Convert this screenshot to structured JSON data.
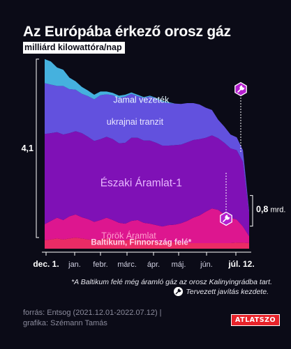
{
  "title": "Az Európába érkező orosz gáz",
  "subtitle": "milliárd kilowattóra/nap",
  "chart_data": {
    "type": "area",
    "stacked": true,
    "x_ticks": [
      "dec. 1.",
      "jan.",
      "febr.",
      "márc.",
      "ápr.",
      "máj.",
      "jún.",
      "júl. 12."
    ],
    "start_value_label": "4,1",
    "end_value_label": "0,8",
    "end_value_unit": "mrd.",
    "ylim": [
      0,
      4.4
    ],
    "series": [
      {
        "name": "Baltikum, Finnország felé*",
        "color": "#ff2f6d",
        "values": [
          0.18,
          0.2,
          0.22,
          0.2,
          0.22,
          0.24,
          0.22,
          0.2,
          0.18,
          0.2,
          0.22,
          0.2,
          0.18,
          0.18,
          0.2,
          0.2,
          0.18,
          0.18,
          0.16,
          0.14,
          0.15,
          0.14,
          0.13,
          0.12,
          0.12,
          0.12,
          0.12,
          0.12,
          0.12,
          0.12,
          0.12,
          0.13,
          0.13,
          0.12
        ]
      },
      {
        "name": "Török Áramlat",
        "color": "#f0189a",
        "values": [
          0.35,
          0.4,
          0.45,
          0.42,
          0.48,
          0.5,
          0.46,
          0.44,
          0.4,
          0.42,
          0.45,
          0.42,
          0.38,
          0.36,
          0.4,
          0.42,
          0.38,
          0.36,
          0.35,
          0.34,
          0.36,
          0.38,
          0.42,
          0.48,
          0.55,
          0.6,
          0.68,
          0.75,
          0.72,
          0.62,
          0.55,
          0.5,
          0.35,
          0.15
        ]
      },
      {
        "name": "Északi Áramlat-1",
        "color": "#8a12c4",
        "values": [
          1.95,
          1.9,
          1.85,
          1.85,
          1.8,
          1.8,
          1.82,
          1.78,
          1.75,
          1.75,
          1.75,
          1.75,
          1.72,
          1.75,
          1.8,
          1.78,
          1.78,
          1.8,
          1.78,
          1.75,
          1.72,
          1.72,
          1.7,
          1.7,
          1.68,
          1.65,
          1.6,
          1.58,
          1.55,
          1.55,
          1.5,
          1.5,
          1.4,
          0.5
        ]
      },
      {
        "name": "ukrajnai tranzit",
        "color": "#6a58f0",
        "values": [
          1.1,
          1.05,
          1.0,
          1.05,
          0.95,
          0.9,
          0.85,
          0.88,
          0.9,
          0.95,
          0.92,
          0.95,
          0.98,
          1.0,
          0.95,
          0.9,
          0.92,
          0.95,
          0.95,
          0.95,
          0.92,
          0.9,
          0.88,
          0.85,
          0.8,
          0.75,
          0.65,
          0.55,
          0.4,
          0.35,
          0.3,
          0.28,
          0.25,
          0.05
        ]
      },
      {
        "name": "Jamal vezeték",
        "color": "#4bc0f0",
        "values": [
          0.52,
          0.5,
          0.4,
          0.35,
          0.25,
          0.18,
          0.15,
          0.12,
          0.1,
          0.08,
          0.06,
          0.05,
          0.05,
          0.04,
          0.03,
          0.03,
          0.02,
          0.02,
          0.02,
          0.02,
          0.02,
          0.0,
          0.0,
          0.0,
          0.0,
          0.0,
          0.0,
          0.0,
          0.0,
          0.0,
          0.0,
          0.0,
          0.0,
          0.0
        ]
      }
    ]
  },
  "footnote": "*A Baltikum felé még áramló gáz az orosz Kalinyingrádba tart.",
  "legend_note": "Tervezett javítás kezdete.",
  "source_line1": "forrás: Entsog (2021.12.01-2022.07.12) |",
  "source_line2": "grafika: Szémann Tamás",
  "logo": "ATLATSZO",
  "icon": "wrench-icon"
}
